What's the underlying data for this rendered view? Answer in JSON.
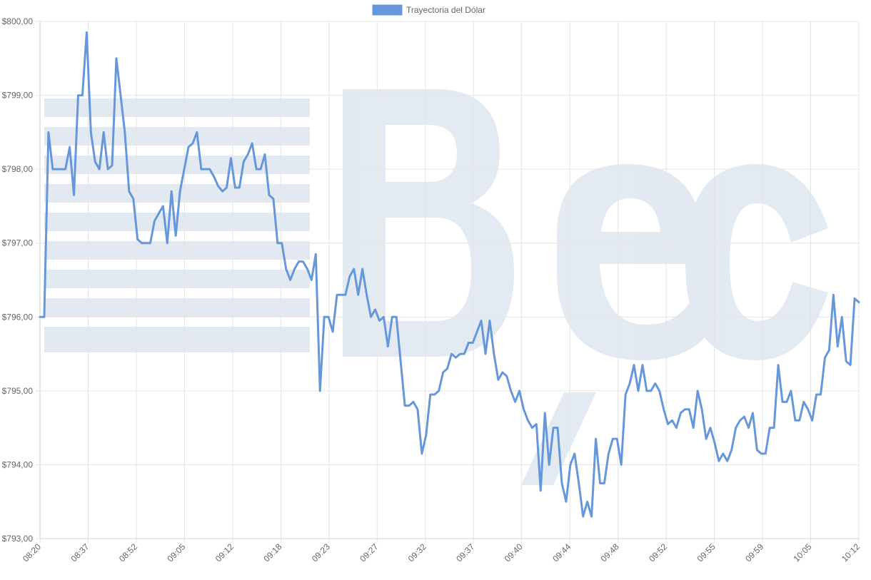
{
  "chart_data": {
    "type": "line",
    "legend_position": "top",
    "grid": true,
    "series": [
      {
        "name": "Trayectoria del Dólar",
        "color": "#6797db",
        "values": [
          796.0,
          796.0,
          798.5,
          798.0,
          798.0,
          798.0,
          798.0,
          798.3,
          797.65,
          799.0,
          799.0,
          799.85,
          798.5,
          798.1,
          798.0,
          798.5,
          798.0,
          798.05,
          799.5,
          799.0,
          798.5,
          797.7,
          797.6,
          797.05,
          797.0,
          797.0,
          797.0,
          797.3,
          797.4,
          797.5,
          797.0,
          797.7,
          797.1,
          797.7,
          798.0,
          798.3,
          798.35,
          798.5,
          798.0,
          798.0,
          798.0,
          797.9,
          797.77,
          797.7,
          797.75,
          798.15,
          797.75,
          797.75,
          798.1,
          798.2,
          798.35,
          798.0,
          798.0,
          798.2,
          797.65,
          797.6,
          797.0,
          797.0,
          796.65,
          796.5,
          796.65,
          796.75,
          796.75,
          796.65,
          796.5,
          796.85,
          795.0,
          796.0,
          796.0,
          795.8,
          796.3,
          796.3,
          796.3,
          796.55,
          796.65,
          796.3,
          796.65,
          796.3,
          796.0,
          796.1,
          795.95,
          796.0,
          795.6,
          796.0,
          796.0,
          795.4,
          794.8,
          794.8,
          794.85,
          794.75,
          794.15,
          794.4,
          794.95,
          794.95,
          795.0,
          795.25,
          795.3,
          795.5,
          795.45,
          795.5,
          795.5,
          795.65,
          795.65,
          795.8,
          795.95,
          795.5,
          795.95,
          795.5,
          795.15,
          795.25,
          795.2,
          795.0,
          794.85,
          795.0,
          794.75,
          794.6,
          794.5,
          794.55,
          793.65,
          794.7,
          794.0,
          794.5,
          794.5,
          793.75,
          793.5,
          794.0,
          794.15,
          793.75,
          793.3,
          793.5,
          793.3,
          794.35,
          793.75,
          793.75,
          794.15,
          794.35,
          794.35,
          794.0,
          794.95,
          795.1,
          795.35,
          795.0,
          795.35,
          795.0,
          795.0,
          795.1,
          795.0,
          794.75,
          794.55,
          794.6,
          794.5,
          794.7,
          794.75,
          794.75,
          794.5,
          795.0,
          794.75,
          794.35,
          794.5,
          794.3,
          794.05,
          794.15,
          794.05,
          794.2,
          794.5,
          794.6,
          794.65,
          794.5,
          794.7,
          794.2,
          794.15,
          794.15,
          794.5,
          794.5,
          795.35,
          794.85,
          794.85,
          795.0,
          794.6,
          794.6,
          794.85,
          794.75,
          794.6,
          794.95,
          794.95,
          795.45,
          795.55,
          796.3,
          795.6,
          796.0,
          795.4,
          795.35,
          796.25,
          796.2
        ]
      }
    ],
    "x_tick_labels": [
      "08:20",
      "08:37",
      "08:52",
      "09:05",
      "09:12",
      "09:18",
      "09:23",
      "09:27",
      "09:32",
      "09:37",
      "09:40",
      "09:44",
      "09:48",
      "09:52",
      "09:55",
      "09:59",
      "10:05",
      "10:12"
    ],
    "y_tick_labels": [
      "$793,00",
      "$794,00",
      "$795,00",
      "$796,00",
      "$797,00",
      "$798,00",
      "$799,00",
      "$800,00"
    ],
    "ylim": [
      793,
      800
    ],
    "title": "",
    "xlabel": "",
    "ylabel": ""
  }
}
